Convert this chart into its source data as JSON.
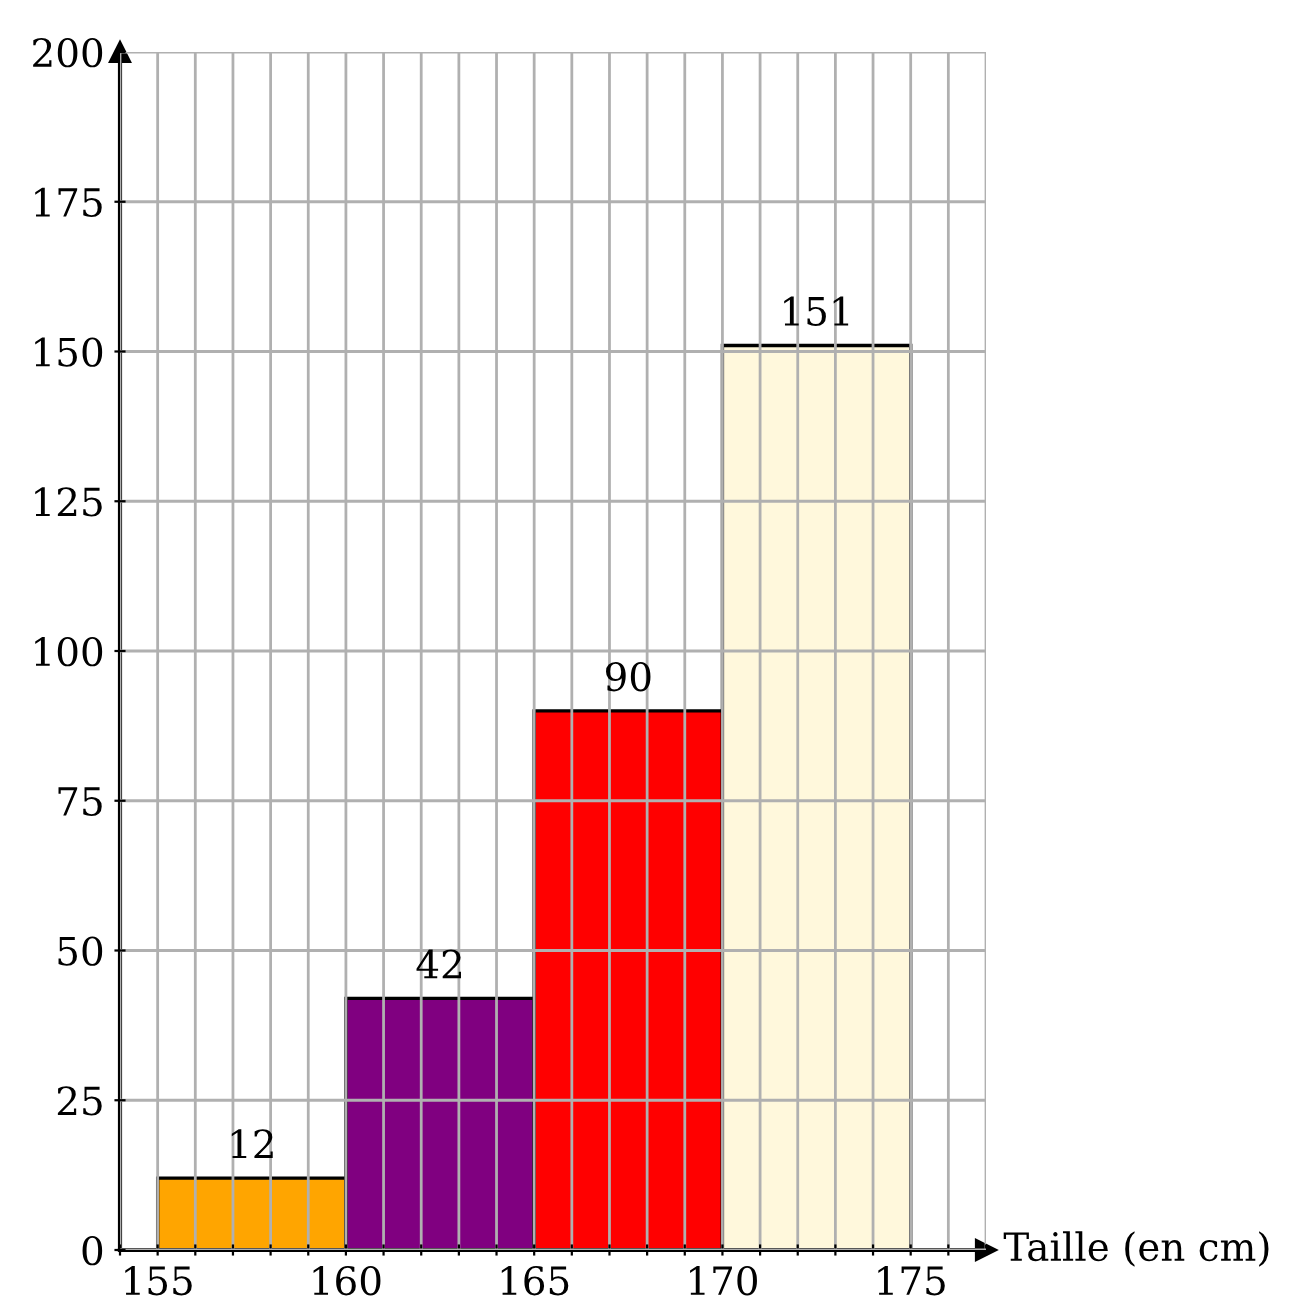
{
  "chart_data": {
    "type": "histogram",
    "xlabel": "Taille (en cm)",
    "bins": [
      155,
      160,
      165,
      170,
      175
    ],
    "values": [
      12,
      42,
      90,
      151
    ],
    "colors": [
      "#ffa500",
      "#800080",
      "#ff0000",
      "#fff8dc"
    ],
    "data_labels": true,
    "xlim": [
      154,
      177
    ],
    "ylim": [
      0,
      200
    ],
    "xticks": [
      {
        "value": 154,
        "label": null
      },
      155,
      {
        "value": 156,
        "label": null
      },
      {
        "value": 157,
        "label": null
      },
      {
        "value": 158,
        "label": null
      },
      {
        "value": 159,
        "label": null
      },
      160,
      {
        "value": 161,
        "label": null
      },
      {
        "value": 162,
        "label": null
      },
      {
        "value": 163,
        "label": null
      },
      {
        "value": 164,
        "label": null
      },
      165,
      {
        "value": 166,
        "label": null
      },
      {
        "value": 167,
        "label": null
      },
      {
        "value": 168,
        "label": null
      },
      {
        "value": 169,
        "label": null
      },
      170,
      {
        "value": 171,
        "label": null
      },
      {
        "value": 172,
        "label": null
      },
      {
        "value": 173,
        "label": null
      },
      {
        "value": 174,
        "label": null
      },
      175,
      {
        "value": 176,
        "label": null
      },
      {
        "value": 177,
        "label": null
      }
    ],
    "yticks": [
      0,
      25,
      50,
      75,
      100,
      125,
      150,
      175,
      200
    ],
    "grid": true
  }
}
